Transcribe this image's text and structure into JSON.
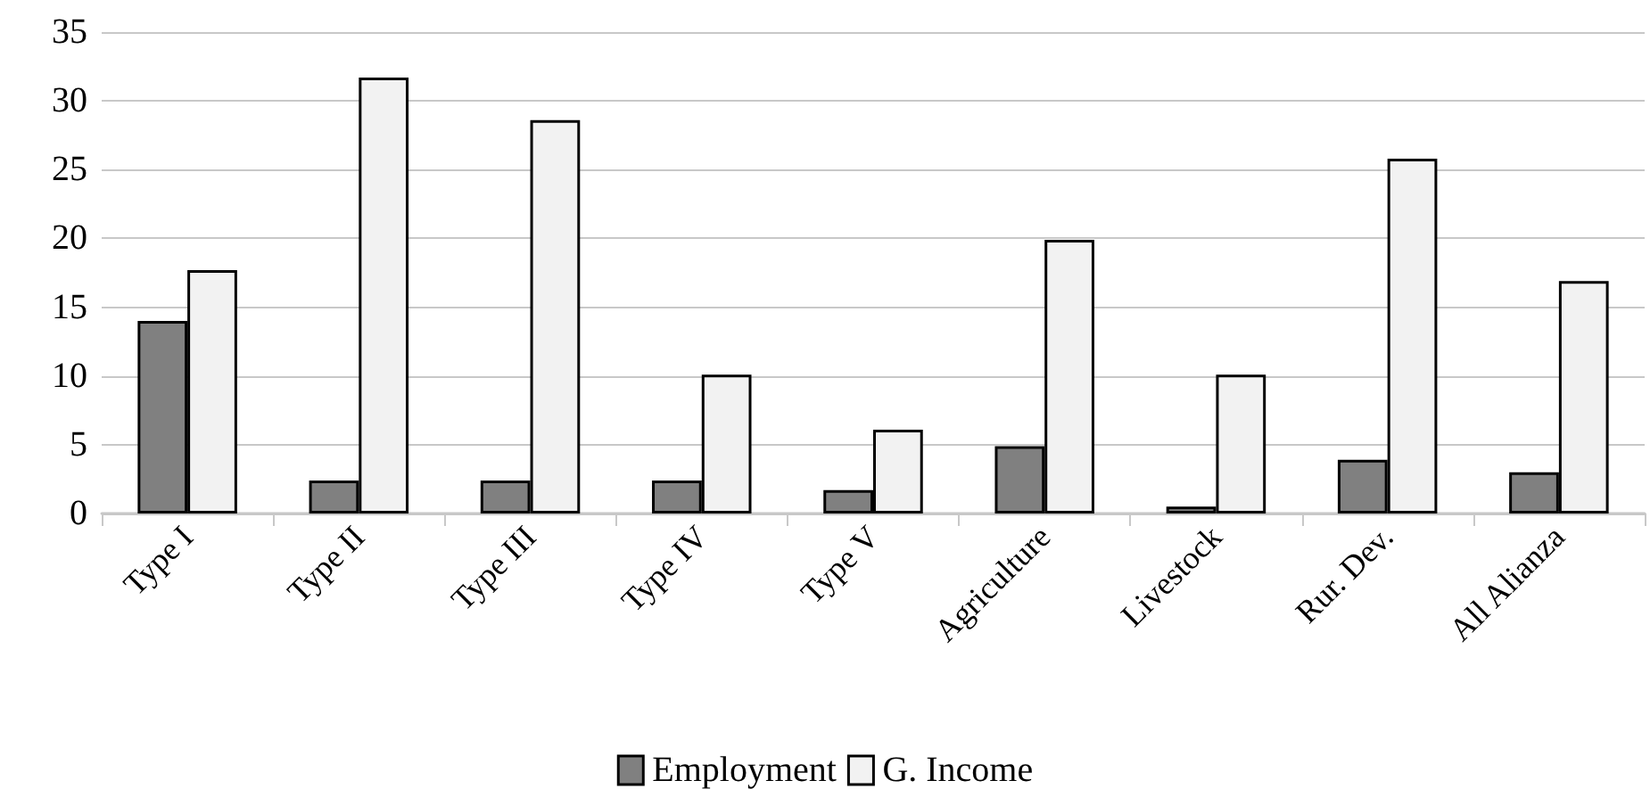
{
  "chart_data": {
    "type": "bar",
    "categories": [
      "Type I",
      "Type II",
      "Type III",
      "Type IV",
      "Type V",
      "Agriculture",
      "Livestock",
      "Rur. Dev.",
      "All Alianza"
    ],
    "series": [
      {
        "name": "Employment",
        "color": "#808080",
        "values": [
          14.0,
          2.4,
          2.4,
          2.4,
          1.7,
          4.9,
          0.5,
          3.9,
          3.0
        ]
      },
      {
        "name": "G. Income",
        "color": "#f2f2f2",
        "values": [
          17.7,
          31.7,
          28.6,
          10.1,
          6.1,
          19.9,
          10.1,
          25.8,
          16.9
        ]
      }
    ],
    "ylim": [
      0,
      35
    ],
    "yticks": [
      0,
      5,
      10,
      15,
      20,
      25,
      30,
      35
    ],
    "grid": "y",
    "legend": "bottom"
  }
}
